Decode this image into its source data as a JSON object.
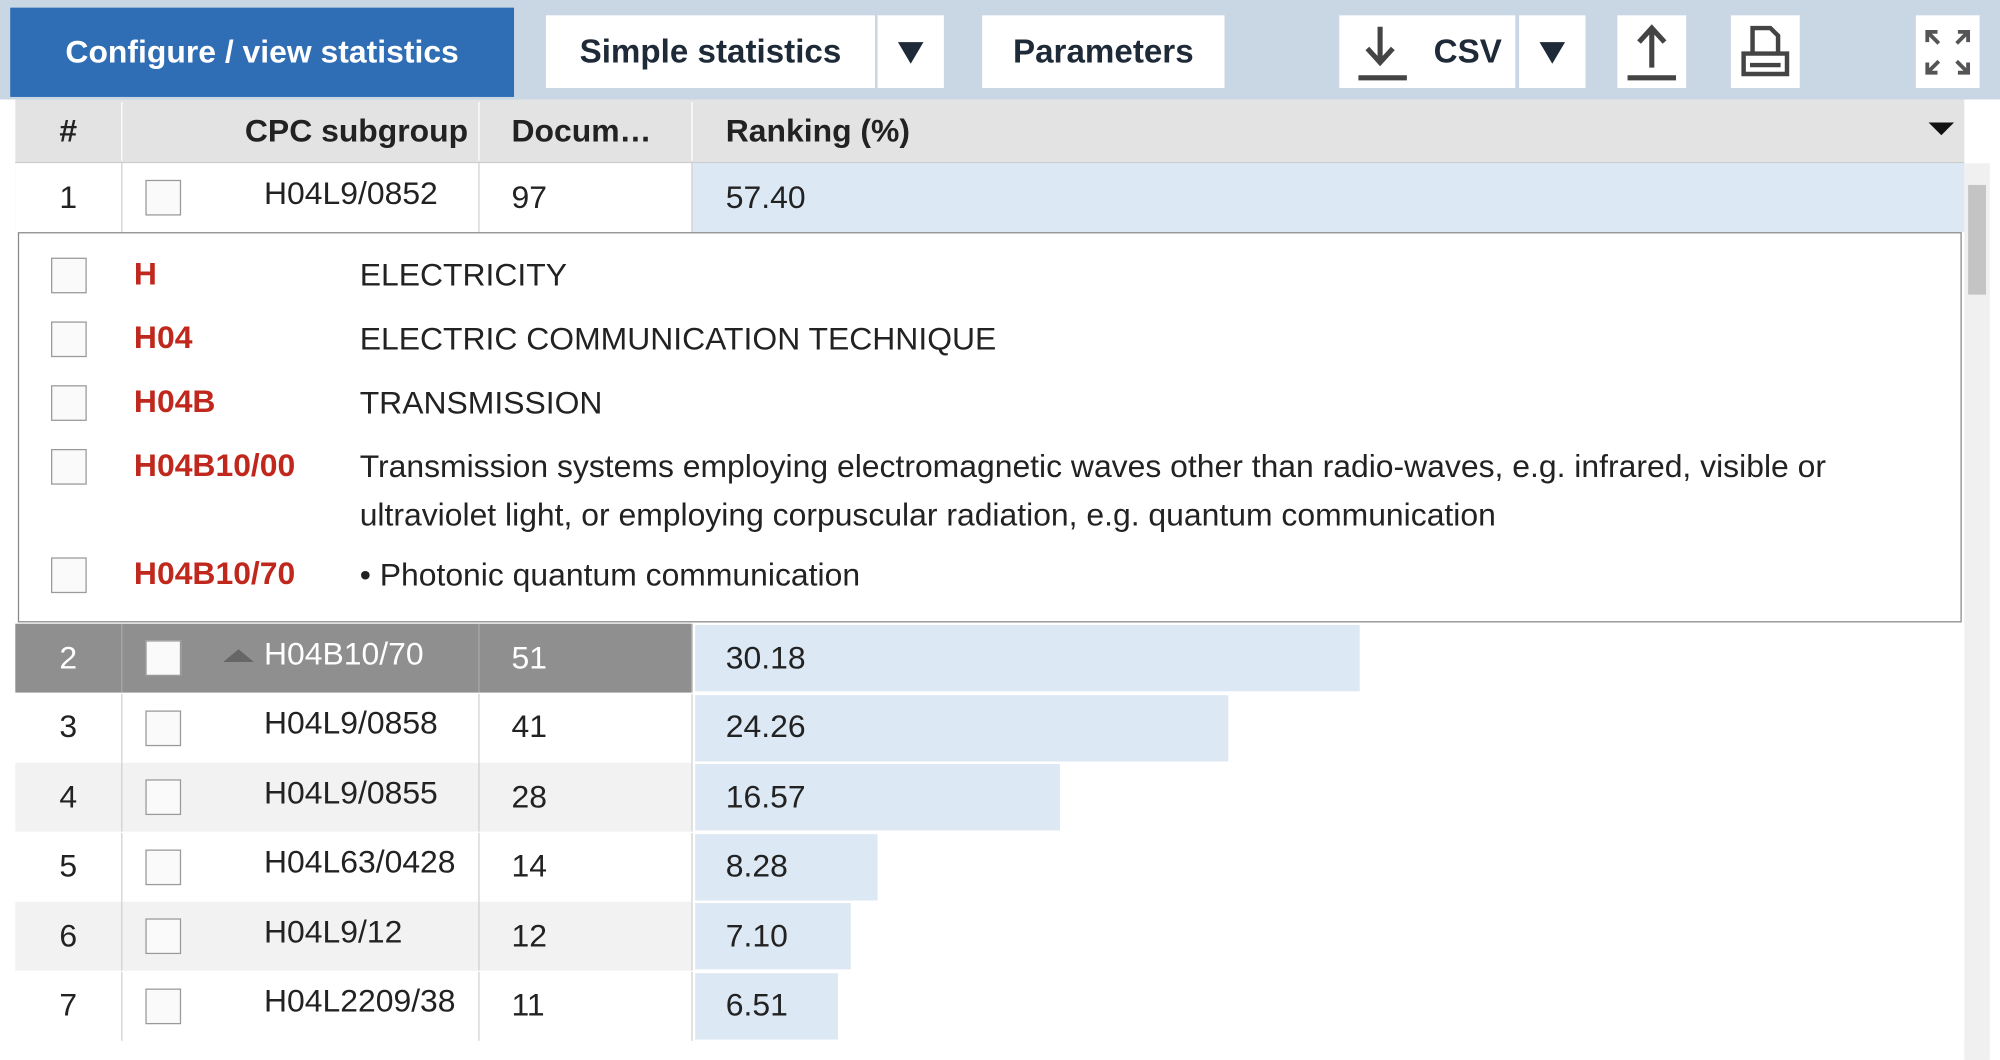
{
  "toolbar": {
    "title": "Configure / view statistics",
    "statistics_button": "Simple statistics",
    "parameters_button": "Parameters",
    "csv_button": "CSV"
  },
  "table": {
    "columns": [
      "#",
      "CPC subgroup",
      "Docum…",
      "Ranking (%)"
    ],
    "rows": [
      {
        "number": 1,
        "code": "H04L9/0852",
        "documents": 97,
        "ranking": {
          "value": 57.4,
          "label": "57.40"
        }
      },
      {
        "number": 2,
        "code": "H04B10/70",
        "documents": 51,
        "ranking": {
          "value": 30.18,
          "label": "30.18"
        }
      },
      {
        "number": 3,
        "code": "H04L9/0858",
        "documents": 41,
        "ranking": {
          "value": 24.26,
          "label": "24.26"
        }
      },
      {
        "number": 4,
        "code": "H04L9/0855",
        "documents": 28,
        "ranking": {
          "value": 16.57,
          "label": "16.57"
        }
      },
      {
        "number": 5,
        "code": "H04L63/0428",
        "documents": 14,
        "ranking": {
          "value": 8.28,
          "label": "8.28"
        }
      },
      {
        "number": 6,
        "code": "H04L9/12",
        "documents": 12,
        "ranking": {
          "value": 7.1,
          "label": "7.10"
        }
      },
      {
        "number": 7,
        "code": "H04L2209/38",
        "documents": 11,
        "ranking": {
          "value": 6.51,
          "label": "6.51"
        }
      }
    ]
  },
  "hierarchy": [
    {
      "code": "H",
      "description": "ELECTRICITY"
    },
    {
      "code": "H04",
      "description": "ELECTRIC COMMUNICATION TECHNIQUE"
    },
    {
      "code": "H04B",
      "description": "TRANSMISSION"
    },
    {
      "code": "H04B10/00",
      "description": "Transmission systems employing electromagnetic waves other than radio-waves, e.g. infrared, visible or ultraviolet light, or employing corpuscular radiation, e.g. quantum communication"
    },
    {
      "code": "H04B10/70",
      "description": "• Photonic quantum communication"
    }
  ]
}
